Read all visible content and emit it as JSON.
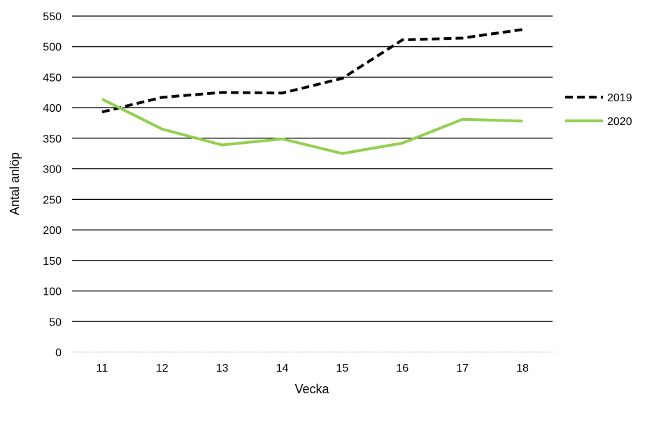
{
  "chart_data": {
    "type": "line",
    "xlabel": "Vecka",
    "ylabel": "Antal anlöp",
    "categories": [
      "11",
      "12",
      "13",
      "14",
      "15",
      "16",
      "17",
      "18"
    ],
    "ylim": [
      0,
      550
    ],
    "yticks": [
      "0",
      "50",
      "100",
      "150",
      "200",
      "250",
      "300",
      "350",
      "400",
      "450",
      "500",
      "550"
    ],
    "grid": true,
    "legend_position": "right",
    "series": [
      {
        "name": "2019",
        "values": [
          393,
          417,
          425,
          424,
          448,
          511,
          514,
          528
        ],
        "color": "#000000",
        "style": "dashed"
      },
      {
        "name": "2020",
        "values": [
          414,
          365,
          339,
          349,
          325,
          342,
          381,
          378
        ],
        "color": "#92d050",
        "style": "solid"
      }
    ]
  }
}
